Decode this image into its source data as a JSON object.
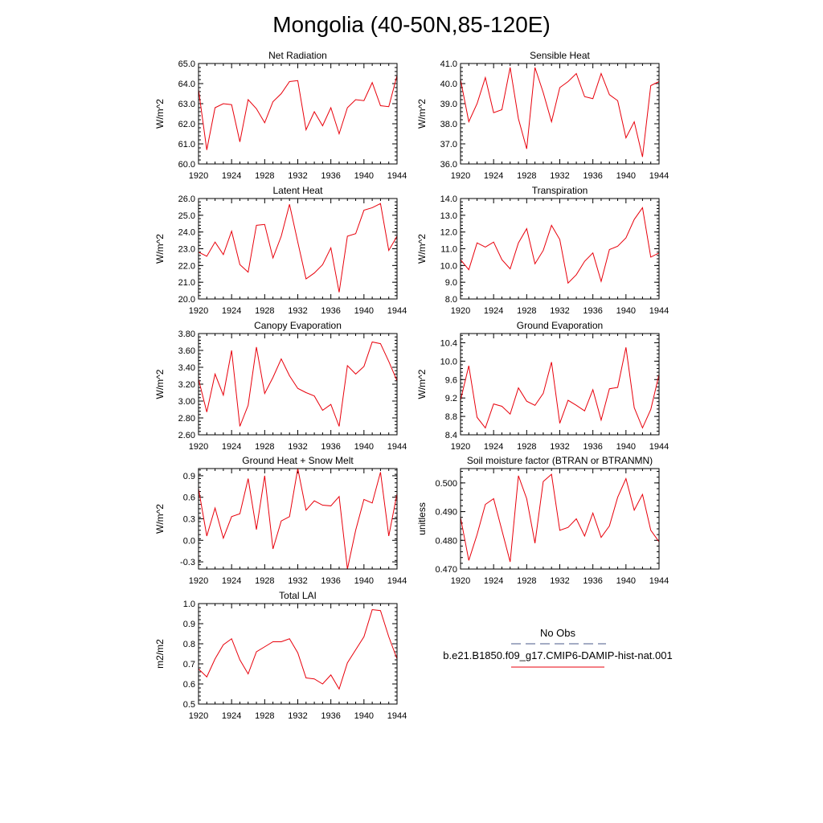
{
  "figure_title": "Mongolia (40-50N,85-120E)",
  "legend": {
    "obs_label": "No Obs",
    "obs_color": "#4a5a8a",
    "model_label": "b.e21.B1850.f09_g17.CMIP6-DAMIP-hist-nat.001",
    "model_color": "#e8000b"
  },
  "chart_data": [
    {
      "type": "line",
      "title": "Net Radiation",
      "ylabel": "W/m^2",
      "xlim": [
        1920,
        1944
      ],
      "ylim": [
        60.0,
        65.0
      ],
      "x_ticks": [
        1920,
        1924,
        1928,
        1932,
        1936,
        1940,
        1944
      ],
      "y_ticks": [
        "60.0",
        "61.0",
        "62.0",
        "63.0",
        "64.0",
        "65.0"
      ],
      "x": [
        1920,
        1921,
        1922,
        1923,
        1924,
        1925,
        1926,
        1927,
        1928,
        1929,
        1930,
        1931,
        1932,
        1933,
        1934,
        1935,
        1936,
        1937,
        1938,
        1939,
        1940,
        1941,
        1942,
        1943,
        1944
      ],
      "values": [
        63.7,
        60.7,
        62.8,
        63.0,
        62.95,
        61.1,
        63.2,
        62.75,
        62.05,
        63.1,
        63.5,
        64.1,
        64.15,
        61.7,
        62.6,
        61.9,
        62.8,
        61.5,
        62.8,
        63.2,
        63.15,
        64.05,
        62.9,
        62.85,
        64.4
      ]
    },
    {
      "type": "line",
      "title": "Sensible Heat",
      "ylabel": "W/m^2",
      "xlim": [
        1920,
        1944
      ],
      "ylim": [
        36.0,
        41.0
      ],
      "x_ticks": [
        1920,
        1924,
        1928,
        1932,
        1936,
        1940,
        1944
      ],
      "y_ticks": [
        "36.0",
        "37.0",
        "38.0",
        "39.0",
        "40.0",
        "41.0"
      ],
      "x": [
        1920,
        1921,
        1922,
        1923,
        1924,
        1925,
        1926,
        1927,
        1928,
        1929,
        1930,
        1931,
        1932,
        1933,
        1934,
        1935,
        1936,
        1937,
        1938,
        1939,
        1940,
        1941,
        1942,
        1943,
        1944
      ],
      "values": [
        40.2,
        38.1,
        39.0,
        40.3,
        38.55,
        38.7,
        40.8,
        38.25,
        36.75,
        40.8,
        39.55,
        38.1,
        39.8,
        40.1,
        40.5,
        39.35,
        39.25,
        40.5,
        39.45,
        39.15,
        37.3,
        38.1,
        36.35,
        39.9,
        40.1
      ]
    },
    {
      "type": "line",
      "title": "Latent Heat",
      "ylabel": "W/m^2",
      "xlim": [
        1920,
        1944
      ],
      "ylim": [
        20.0,
        26.0
      ],
      "x_ticks": [
        1920,
        1924,
        1928,
        1932,
        1936,
        1940,
        1944
      ],
      "y_ticks": [
        "20.0",
        "21.0",
        "22.0",
        "23.0",
        "24.0",
        "25.0",
        "26.0"
      ],
      "x": [
        1920,
        1921,
        1922,
        1923,
        1924,
        1925,
        1926,
        1927,
        1928,
        1929,
        1930,
        1931,
        1932,
        1933,
        1934,
        1935,
        1936,
        1937,
        1938,
        1939,
        1940,
        1941,
        1942,
        1943,
        1944
      ],
      "values": [
        22.8,
        22.55,
        23.4,
        22.65,
        24.05,
        22.05,
        21.6,
        24.4,
        24.45,
        22.45,
        23.75,
        25.65,
        23.4,
        21.2,
        21.55,
        22.05,
        23.05,
        20.4,
        23.75,
        23.9,
        25.3,
        25.45,
        25.7,
        22.9,
        23.75
      ]
    },
    {
      "type": "line",
      "title": "Transpiration",
      "ylabel": "W/m^2",
      "xlim": [
        1920,
        1944
      ],
      "ylim": [
        8.0,
        14.0
      ],
      "x_ticks": [
        1920,
        1924,
        1928,
        1932,
        1936,
        1940,
        1944
      ],
      "y_ticks": [
        "8.0",
        "9.0",
        "10.0",
        "11.0",
        "12.0",
        "13.0",
        "14.0"
      ],
      "x": [
        1920,
        1921,
        1922,
        1923,
        1924,
        1925,
        1926,
        1927,
        1928,
        1929,
        1930,
        1931,
        1932,
        1933,
        1934,
        1935,
        1936,
        1937,
        1938,
        1939,
        1940,
        1941,
        1942,
        1943,
        1944
      ],
      "values": [
        10.35,
        9.75,
        11.35,
        11.1,
        11.4,
        10.35,
        9.8,
        11.35,
        12.2,
        10.1,
        10.9,
        12.4,
        11.55,
        8.95,
        9.45,
        10.25,
        10.75,
        9.05,
        10.95,
        11.15,
        11.65,
        12.75,
        13.45,
        10.5,
        10.75
      ]
    },
    {
      "type": "line",
      "title": "Canopy Evaporation",
      "ylabel": "W/m^2",
      "xlim": [
        1920,
        1944
      ],
      "ylim": [
        2.6,
        3.8
      ],
      "x_ticks": [
        1920,
        1924,
        1928,
        1932,
        1936,
        1940,
        1944
      ],
      "y_ticks": [
        "2.60",
        "2.80",
        "3.00",
        "3.20",
        "3.40",
        "3.60",
        "3.80"
      ],
      "x": [
        1920,
        1921,
        1922,
        1923,
        1924,
        1925,
        1926,
        1927,
        1928,
        1929,
        1930,
        1931,
        1932,
        1933,
        1934,
        1935,
        1936,
        1937,
        1938,
        1939,
        1940,
        1941,
        1942,
        1943,
        1944
      ],
      "values": [
        3.26,
        2.87,
        3.32,
        3.07,
        3.6,
        2.7,
        2.95,
        3.64,
        3.09,
        3.28,
        3.5,
        3.3,
        3.15,
        3.1,
        3.06,
        2.89,
        2.96,
        2.7,
        3.42,
        3.32,
        3.41,
        3.7,
        3.68,
        3.47,
        3.24
      ]
    },
    {
      "type": "line",
      "title": "Ground Evaporation",
      "ylabel": "W/m^2",
      "xlim": [
        1920,
        1944
      ],
      "ylim": [
        8.4,
        10.6
      ],
      "x_ticks": [
        1920,
        1924,
        1928,
        1932,
        1936,
        1940,
        1944
      ],
      "y_ticks": [
        "8.4",
        "8.8",
        "9.2",
        "9.6",
        "10.0",
        "10.4"
      ],
      "x": [
        1920,
        1921,
        1922,
        1923,
        1924,
        1925,
        1926,
        1927,
        1928,
        1929,
        1930,
        1931,
        1932,
        1933,
        1934,
        1935,
        1936,
        1937,
        1938,
        1939,
        1940,
        1941,
        1942,
        1943,
        1944
      ],
      "values": [
        9.15,
        9.9,
        8.78,
        8.55,
        9.07,
        9.02,
        8.85,
        9.42,
        9.13,
        9.04,
        9.3,
        9.98,
        8.65,
        9.15,
        9.04,
        8.92,
        9.38,
        8.72,
        9.4,
        9.43,
        10.3,
        8.99,
        8.55,
        8.95,
        9.71
      ]
    },
    {
      "type": "line",
      "title": "Ground Heat + Snow Melt",
      "ylabel": "W/m^2",
      "xlim": [
        1920,
        1944
      ],
      "ylim": [
        -0.4,
        1.0
      ],
      "x_ticks": [
        1920,
        1924,
        1928,
        1932,
        1936,
        1940,
        1944
      ],
      "y_ticks": [
        "-0.3",
        "0.0",
        "0.3",
        "0.6",
        "0.9"
      ],
      "y_tick_values": [
        -0.3,
        0.0,
        0.3,
        0.6,
        0.9
      ],
      "x": [
        1920,
        1921,
        1922,
        1923,
        1924,
        1925,
        1926,
        1927,
        1928,
        1929,
        1930,
        1931,
        1932,
        1933,
        1934,
        1935,
        1936,
        1937,
        1938,
        1939,
        1940,
        1941,
        1942,
        1943,
        1944
      ],
      "values": [
        0.72,
        0.06,
        0.45,
        0.03,
        0.33,
        0.37,
        0.86,
        0.15,
        0.9,
        -0.12,
        0.27,
        0.33,
        1.0,
        0.42,
        0.55,
        0.49,
        0.48,
        0.61,
        -0.4,
        0.14,
        0.57,
        0.52,
        0.95,
        0.06,
        0.65
      ]
    },
    {
      "type": "line",
      "title": "Soil moisture factor (BTRAN or BTRANMN)",
      "ylabel": "unitless",
      "xlim": [
        1920,
        1944
      ],
      "ylim": [
        0.47,
        0.505
      ],
      "x_ticks": [
        1920,
        1924,
        1928,
        1932,
        1936,
        1940,
        1944
      ],
      "y_ticks": [
        "0.470",
        "0.480",
        "0.490",
        "0.500"
      ],
      "y_tick_values": [
        0.47,
        0.48,
        0.49,
        0.5
      ],
      "x": [
        1920,
        1921,
        1922,
        1923,
        1924,
        1925,
        1926,
        1927,
        1928,
        1929,
        1930,
        1931,
        1932,
        1933,
        1934,
        1935,
        1936,
        1937,
        1938,
        1939,
        1940,
        1941,
        1942,
        1943,
        1944
      ],
      "values": [
        0.488,
        0.473,
        0.482,
        0.4925,
        0.4945,
        0.4835,
        0.4725,
        0.5025,
        0.4945,
        0.479,
        0.5005,
        0.503,
        0.4835,
        0.4845,
        0.4875,
        0.4815,
        0.4895,
        0.481,
        0.485,
        0.495,
        0.5015,
        0.4905,
        0.496,
        0.4835,
        0.4795
      ]
    },
    {
      "type": "line",
      "title": "Total LAI",
      "ylabel": "m2/m2",
      "xlim": [
        1920,
        1944
      ],
      "ylim": [
        0.5,
        1.0
      ],
      "x_ticks": [
        1920,
        1924,
        1928,
        1932,
        1936,
        1940,
        1944
      ],
      "y_ticks": [
        "0.5",
        "0.6",
        "0.7",
        "0.8",
        "0.9",
        "1.0"
      ],
      "x": [
        1920,
        1921,
        1922,
        1923,
        1924,
        1925,
        1926,
        1927,
        1928,
        1929,
        1930,
        1931,
        1932,
        1933,
        1934,
        1935,
        1936,
        1937,
        1938,
        1939,
        1940,
        1941,
        1942,
        1943,
        1944
      ],
      "values": [
        0.675,
        0.635,
        0.725,
        0.795,
        0.825,
        0.72,
        0.65,
        0.76,
        0.785,
        0.81,
        0.81,
        0.825,
        0.755,
        0.63,
        0.625,
        0.6,
        0.645,
        0.575,
        0.705,
        0.77,
        0.835,
        0.97,
        0.965,
        0.835,
        0.725
      ]
    }
  ]
}
